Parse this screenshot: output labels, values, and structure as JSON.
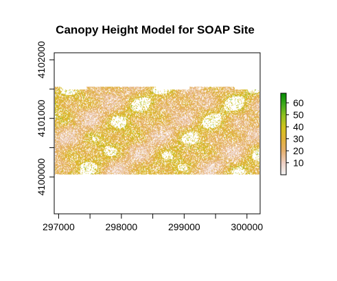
{
  "chart_data": {
    "type": "heatmap",
    "title": "Canopy Height Model for SOAP Site",
    "xlabel": "",
    "ylabel": "",
    "xlim": [
      296930,
      300210
    ],
    "ylim": [
      4099370,
      4102120
    ],
    "x_ticks": [
      297000,
      298000,
      299000,
      300000
    ],
    "x_tick_labels": [
      "297000",
      "298000",
      "299000",
      "300000"
    ],
    "y_ticks": [
      4100000,
      4101000,
      4102000
    ],
    "y_tick_labels": [
      "4100000",
      "4101000",
      "4102000"
    ],
    "raster_extent": {
      "xmin": 296940,
      "xmax": 300200,
      "ymin": 4100040,
      "ymax": 4101540
    },
    "legend": {
      "type": "colorbar",
      "placement": "right",
      "range": [
        0,
        68
      ],
      "ticks": [
        10,
        20,
        30,
        40,
        50,
        60
      ],
      "tick_labels": [
        "10",
        "20",
        "30",
        "40",
        "50",
        "60"
      ],
      "colors": [
        "#f2f2f2",
        "#eecfc2",
        "#e6b06e",
        "#e2b23a",
        "#d3c21b",
        "#93c11f",
        "#3faa1c",
        "#008a00"
      ]
    },
    "grid": false,
    "values_note": ""
  }
}
